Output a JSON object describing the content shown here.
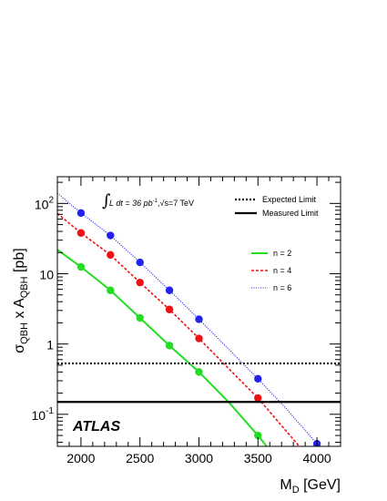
{
  "chart_data": {
    "type": "line",
    "xlabel_main": "M",
    "xlabel_sub": "D",
    "xlabel_unit": " [GeV]",
    "ylabel_pre": "σ",
    "ylabel_sub1": "QBH",
    "ylabel_mid": " x A",
    "ylabel_sub2": "QBH",
    "ylabel_unit": " [pb]",
    "xlim": [
      1800,
      4200
    ],
    "ylim": [
      0.035,
      240
    ],
    "y_scale": "log",
    "x_ticks": [
      "2000",
      "2500",
      "3000",
      "3500",
      "4000"
    ],
    "x_tick_values": [
      2000,
      2500,
      3000,
      3500,
      4000
    ],
    "y_ticks": [
      {
        "value": 0.1,
        "base": "10",
        "exp": "-1"
      },
      {
        "value": 1,
        "base": "1",
        "exp": ""
      },
      {
        "value": 10,
        "base": "10",
        "exp": ""
      },
      {
        "value": 100,
        "base": "10",
        "exp": "2"
      }
    ],
    "annotation": {
      "integral": "∫",
      "lumi_pre": "L dt = 36 pb",
      "lumi_exp": "-1",
      "lumi_sep": ",",
      "sqrt": "√",
      "energy": "s=7 TeV"
    },
    "atlas_label": "ATLAS",
    "limits": [
      {
        "name": "Expected Limit",
        "value": 0.53,
        "style": "dotted",
        "color": "#000000"
      },
      {
        "name": "Measured Limit",
        "value": 0.15,
        "style": "solid",
        "color": "#000000"
      }
    ],
    "series": [
      {
        "name": "n = 2",
        "color": "#22dd22",
        "style": "solid",
        "curve_x": [
          1800,
          2000,
          2250,
          2500,
          2750,
          3000,
          3250,
          3500,
          3750,
          4000
        ],
        "curve_y": [
          22,
          12.5,
          5.8,
          2.35,
          0.95,
          0.4,
          0.15,
          0.05,
          0.015,
          0.005
        ],
        "x": [
          2000,
          2250,
          2500,
          2750,
          3000,
          3500
        ],
        "y": [
          12.5,
          5.8,
          2.35,
          0.95,
          0.4,
          0.05
        ]
      },
      {
        "name": "n = 4",
        "color": "#ee1111",
        "style": "dashed",
        "curve_x": [
          1800,
          2000,
          2250,
          2500,
          2750,
          3000,
          3250,
          3500,
          3750,
          4000
        ],
        "curve_y": [
          72,
          38,
          18.5,
          7.5,
          3.1,
          1.2,
          0.45,
          0.17,
          0.055,
          0.018
        ],
        "x": [
          2000,
          2250,
          2500,
          2750,
          3000,
          3500
        ],
        "y": [
          38,
          18.5,
          7.5,
          3.1,
          1.2,
          0.17
        ]
      },
      {
        "name": "n = 6",
        "color": "#2222ee",
        "style": "dotted",
        "curve_x": [
          1800,
          2000,
          2250,
          2500,
          2750,
          3000,
          3250,
          3500,
          3750,
          4000
        ],
        "curve_y": [
          140,
          73,
          35,
          14.5,
          5.8,
          2.25,
          0.85,
          0.32,
          0.115,
          0.038
        ],
        "x": [
          2000,
          2250,
          2500,
          2750,
          3000,
          3500,
          4000
        ],
        "y": [
          73,
          35,
          14.5,
          5.8,
          2.25,
          0.32,
          0.038
        ]
      }
    ],
    "legend_position": "upper-right"
  }
}
